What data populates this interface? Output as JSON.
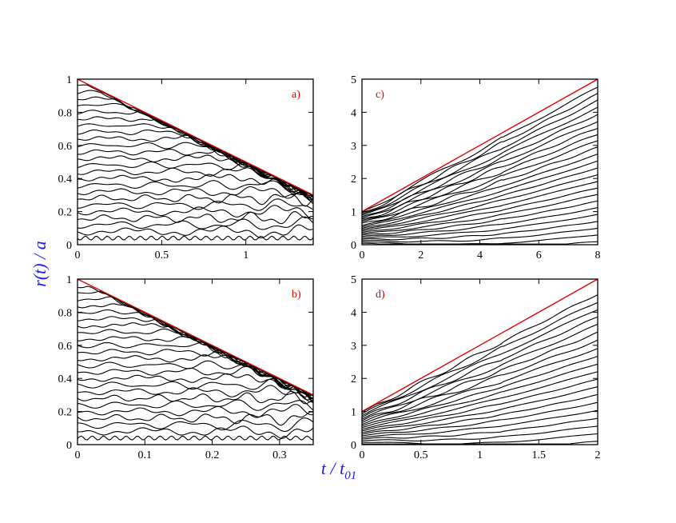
{
  "colors": {
    "axis_title": "#1a1aff",
    "panel_label": "#e00000",
    "boundary_line": "#e00000",
    "trajectories": "#000000"
  },
  "figure": {
    "ylabel_main": "r(t)",
    "ylabel_sep": " / ",
    "ylabel_tail": "a",
    "xlabel_main": "t",
    "xlabel_sep": " / ",
    "xlabel_base": "t",
    "xlabel_sub": "01"
  },
  "chart_data": [
    {
      "type": "line",
      "panel": "a)",
      "xlim": [
        0,
        1.4
      ],
      "ylim": [
        0,
        1
      ],
      "xticks": [
        0,
        0.5,
        1
      ],
      "xtick_labels": [
        "0",
        "0.5",
        "1"
      ],
      "yticks": [
        0,
        0.2,
        0.4,
        0.6,
        0.8,
        1
      ],
      "ytick_labels": [
        "0",
        "0.2",
        "0.4",
        "0.6",
        "0.8",
        "1"
      ],
      "boundary": {
        "x": [
          0,
          1.4
        ],
        "y": [
          1,
          0.3
        ]
      },
      "trajectories": {
        "count": 24,
        "start_min": 0.04,
        "start_max": 0.96
      }
    },
    {
      "type": "line",
      "panel": "c)",
      "xlim": [
        0,
        8
      ],
      "ylim": [
        0,
        5
      ],
      "xticks": [
        0,
        2,
        4,
        6,
        8
      ],
      "xtick_labels": [
        "0",
        "2",
        "4",
        "6",
        "8"
      ],
      "yticks": [
        0,
        1,
        2,
        3,
        4,
        5
      ],
      "ytick_labels": [
        "0",
        "1",
        "2",
        "3",
        "4",
        "5"
      ],
      "boundary": {
        "x": [
          0,
          8
        ],
        "y": [
          1,
          5
        ]
      },
      "trajectories": {
        "count": 24,
        "start_min": 0.04,
        "start_max": 0.96,
        "end_min": 0.1,
        "end_max": 4.75
      }
    },
    {
      "type": "line",
      "panel": "b)",
      "xlim": [
        0,
        0.35
      ],
      "ylim": [
        0,
        1
      ],
      "xticks": [
        0,
        0.1,
        0.2,
        0.3
      ],
      "xtick_labels": [
        "0",
        "0.1",
        "0.2",
        "0.3"
      ],
      "yticks": [
        0,
        0.2,
        0.4,
        0.6,
        0.8,
        1
      ],
      "ytick_labels": [
        "0",
        "0.2",
        "0.4",
        "0.6",
        "0.8",
        "1"
      ],
      "boundary": {
        "x": [
          0,
          0.35
        ],
        "y": [
          1,
          0.3
        ]
      },
      "trajectories": {
        "count": 24,
        "start_min": 0.04,
        "start_max": 0.96
      }
    },
    {
      "type": "line",
      "panel": "d)",
      "xlim": [
        0,
        2
      ],
      "ylim": [
        0,
        5
      ],
      "xticks": [
        0,
        0.5,
        1,
        1.5,
        2
      ],
      "xtick_labels": [
        "0",
        "0.5",
        "1",
        "1.5",
        "2"
      ],
      "yticks": [
        0,
        1,
        2,
        3,
        4,
        5
      ],
      "ytick_labels": [
        "0",
        "1",
        "2",
        "3",
        "4",
        "5"
      ],
      "boundary": {
        "x": [
          0,
          2
        ],
        "y": [
          1,
          5
        ]
      },
      "trajectories": {
        "count": 20,
        "start_min": 0.04,
        "start_max": 0.96,
        "end_min": 0.1,
        "end_max": 4.55
      }
    }
  ]
}
